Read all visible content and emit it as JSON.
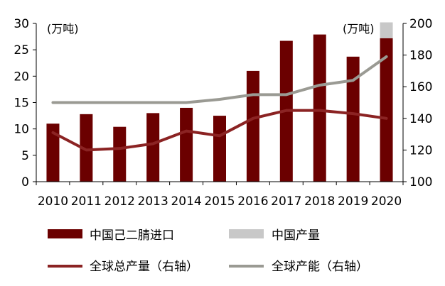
{
  "chart_data": {
    "type": "bar",
    "categories": [
      "2010",
      "2011",
      "2012",
      "2013",
      "2014",
      "2015",
      "2016",
      "2017",
      "2018",
      "2019",
      "2020"
    ],
    "series": [
      {
        "name": "中国己二腈进口",
        "type": "bar",
        "axis": "left",
        "color": "#6b0000",
        "values": [
          11.0,
          12.8,
          10.4,
          13.0,
          14.0,
          12.5,
          21.0,
          26.7,
          27.9,
          23.7,
          27.2
        ]
      },
      {
        "name": "中国产量",
        "type": "bar",
        "axis": "left",
        "color": "#c8c8c8",
        "values": [
          0,
          0,
          0,
          0,
          0,
          0,
          0,
          0,
          0,
          0,
          3.0
        ]
      },
      {
        "name": "全球总产量（右轴）",
        "type": "line",
        "axis": "right",
        "color": "#8b2323",
        "values": [
          131,
          120,
          121,
          124,
          132,
          129,
          140,
          145,
          145,
          143,
          140
        ]
      },
      {
        "name": "全球产能（右轴）",
        "type": "line",
        "axis": "right",
        "color": "#9a9a93",
        "values": [
          150,
          150,
          150,
          150,
          150,
          152,
          155,
          155,
          161,
          164,
          179
        ]
      }
    ],
    "left_axis": {
      "unit": "(万吨)",
      "min": 0,
      "max": 30,
      "ticks": [
        "0",
        "5",
        "10",
        "15",
        "20",
        "25",
        "30"
      ]
    },
    "right_axis": {
      "unit": "(万吨)",
      "min": 100,
      "max": 200,
      "ticks": [
        "100",
        "120",
        "140",
        "160",
        "180",
        "200"
      ]
    },
    "grid": false,
    "legend_position": "bottom"
  }
}
